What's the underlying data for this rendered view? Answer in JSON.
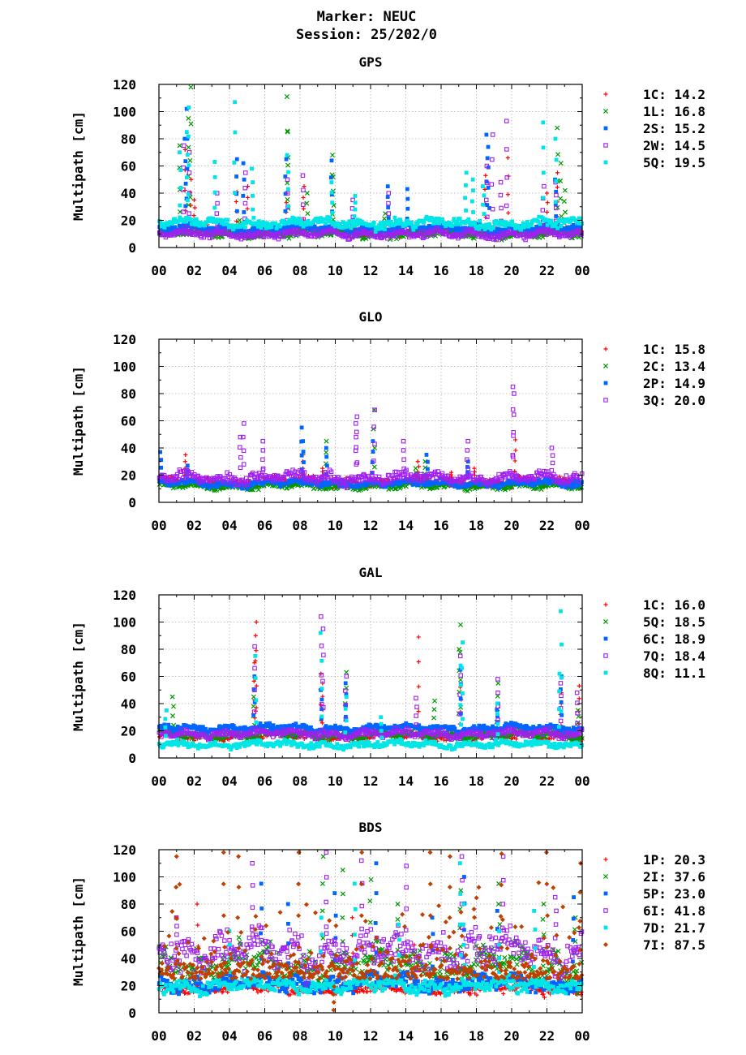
{
  "figure": {
    "title_line1": "Marker: NEUC",
    "title_line2": "Session: 25/202/0"
  },
  "chart_data": [
    {
      "type": "scatter",
      "title": "GPS",
      "ylabel": "Multipath [cm]",
      "xlim": [
        0,
        24
      ],
      "ylim": [
        0,
        120
      ],
      "xticks": [
        "00",
        "02",
        "04",
        "06",
        "08",
        "10",
        "12",
        "14",
        "16",
        "18",
        "20",
        "22",
        "00"
      ],
      "yticks": [
        0,
        20,
        40,
        60,
        80,
        100,
        120
      ],
      "grid": true,
      "legend_position": "right",
      "series": [
        {
          "name": "1C",
          "stat": "14.2",
          "color": "#ff0000",
          "marker": "plus",
          "base": 12,
          "spread": 6,
          "spikes": [
            [
              1.5,
              72
            ],
            [
              1.8,
              50
            ],
            [
              2.0,
              35
            ],
            [
              4.4,
              41
            ],
            [
              5.0,
              45
            ],
            [
              7.2,
              40
            ],
            [
              8.2,
              45
            ],
            [
              18.5,
              53
            ],
            [
              19.8,
              66
            ],
            [
              22.0,
              40
            ],
            [
              22.6,
              55
            ]
          ]
        },
        {
          "name": "1L",
          "stat": "16.8",
          "color": "#009900",
          "marker": "cross",
          "base": 10,
          "spread": 6,
          "spikes": [
            [
              1.8,
              118
            ],
            [
              1.7,
              95
            ],
            [
              1.2,
              75
            ],
            [
              4.6,
              20
            ],
            [
              7.3,
              111
            ],
            [
              7.3,
              85
            ],
            [
              8.4,
              40
            ],
            [
              9.8,
              68
            ],
            [
              9.9,
              52
            ],
            [
              12.8,
              25
            ],
            [
              22.6,
              88
            ],
            [
              22.8,
              62
            ],
            [
              23.0,
              42
            ]
          ]
        },
        {
          "name": "2S",
          "stat": "15.2",
          "color": "#0066ff",
          "marker": "square",
          "base": 14,
          "spread": 6,
          "spikes": [
            [
              1.6,
              102
            ],
            [
              1.5,
              80
            ],
            [
              4.4,
              65
            ],
            [
              4.8,
              62
            ],
            [
              7.2,
              65
            ],
            [
              9.8,
              64
            ],
            [
              13.0,
              45
            ],
            [
              14.1,
              43
            ],
            [
              18.6,
              83
            ],
            [
              18.7,
              74
            ],
            [
              22.5,
              50
            ]
          ]
        },
        {
          "name": "2W",
          "stat": "14.5",
          "color": "#a020f0",
          "marker": "square-open",
          "base": 10,
          "spread": 6,
          "spikes": [
            [
              1.4,
              75
            ],
            [
              1.7,
              70
            ],
            [
              3.3,
              40
            ],
            [
              4.9,
              55
            ],
            [
              7.3,
              50
            ],
            [
              8.2,
              53
            ],
            [
              11.0,
              35
            ],
            [
              13.0,
              40
            ],
            [
              18.6,
              60
            ],
            [
              18.9,
              83
            ],
            [
              19.7,
              93
            ],
            [
              19.4,
              48
            ],
            [
              21.8,
              45
            ],
            [
              22.5,
              48
            ]
          ]
        },
        {
          "name": "5Q",
          "stat": "19.5",
          "color": "#00e5e5",
          "marker": "square",
          "base": 18,
          "spread": 7,
          "spikes": [
            [
              1.2,
              70
            ],
            [
              1.7,
              103
            ],
            [
              1.6,
              85
            ],
            [
              3.2,
              63
            ],
            [
              4.3,
              107
            ],
            [
              5.3,
              58
            ],
            [
              7.3,
              68
            ],
            [
              9.8,
              48
            ],
            [
              11.1,
              38
            ],
            [
              17.4,
              55
            ],
            [
              17.8,
              50
            ],
            [
              18.4,
              45
            ],
            [
              21.8,
              92
            ],
            [
              22.5,
              80
            ]
          ]
        }
      ]
    },
    {
      "type": "scatter",
      "title": "GLO",
      "ylabel": "Multipath [cm]",
      "xlim": [
        0,
        24
      ],
      "ylim": [
        0,
        120
      ],
      "xticks": [
        "00",
        "02",
        "04",
        "06",
        "08",
        "10",
        "12",
        "14",
        "16",
        "18",
        "20",
        "22",
        "00"
      ],
      "yticks": [
        0,
        20,
        40,
        60,
        80,
        100,
        120
      ],
      "grid": true,
      "legend_position": "right",
      "series": [
        {
          "name": "1C",
          "stat": "15.8",
          "color": "#ff0000",
          "marker": "plus",
          "base": 15,
          "spread": 6,
          "spikes": [
            [
              1.5,
              35
            ],
            [
              8.2,
              35
            ],
            [
              9.3,
              25
            ],
            [
              14.7,
              30
            ],
            [
              16.6,
              22
            ],
            [
              17.9,
              25
            ],
            [
              20.2,
              46
            ]
          ]
        },
        {
          "name": "2C",
          "stat": "13.4",
          "color": "#009900",
          "marker": "cross",
          "base": 12,
          "spread": 5,
          "spikes": [
            [
              9.5,
              45
            ],
            [
              12.2,
              68
            ],
            [
              14.6,
              25
            ],
            [
              15.1,
              30
            ]
          ]
        },
        {
          "name": "2P",
          "stat": "14.9",
          "color": "#0066ff",
          "marker": "square",
          "base": 14,
          "spread": 5,
          "spikes": [
            [
              0.1,
              37
            ],
            [
              1.6,
              27
            ],
            [
              8.1,
              55
            ],
            [
              8.2,
              45
            ],
            [
              9.5,
              40
            ],
            [
              12.1,
              45
            ],
            [
              15.2,
              35
            ],
            [
              17.5,
              30
            ]
          ]
        },
        {
          "name": "3Q",
          "stat": "20.0",
          "color": "#a020f0",
          "marker": "square-open",
          "base": 18,
          "spread": 9,
          "spikes": [
            [
              4.8,
              58
            ],
            [
              4.6,
              48
            ],
            [
              5.9,
              45
            ],
            [
              11.2,
              63
            ],
            [
              11.2,
              58
            ],
            [
              12.2,
              68
            ],
            [
              13.9,
              45
            ],
            [
              17.5,
              45
            ],
            [
              20.1,
              85
            ],
            [
              20.1,
              80
            ],
            [
              22.3,
              40
            ]
          ]
        }
      ]
    },
    {
      "type": "scatter",
      "title": "GAL",
      "ylabel": "Multipath [cm]",
      "xlim": [
        0,
        24
      ],
      "ylim": [
        0,
        120
      ],
      "xticks": [
        "00",
        "02",
        "04",
        "06",
        "08",
        "10",
        "12",
        "14",
        "16",
        "18",
        "20",
        "22",
        "00"
      ],
      "yticks": [
        0,
        20,
        40,
        60,
        80,
        100,
        120
      ],
      "grid": true,
      "legend_position": "right",
      "series": [
        {
          "name": "1C",
          "stat": "16.0",
          "color": "#ff0000",
          "marker": "plus",
          "base": 16,
          "spread": 6,
          "spikes": [
            [
              5.5,
              100
            ],
            [
              5.5,
              90
            ],
            [
              5.4,
              70
            ],
            [
              9.2,
              62
            ],
            [
              9.3,
              55
            ],
            [
              14.7,
              89
            ],
            [
              17.1,
              52
            ],
            [
              22.8,
              48
            ],
            [
              23.8,
              53
            ]
          ]
        },
        {
          "name": "5Q",
          "stat": "18.5",
          "color": "#009900",
          "marker": "cross",
          "base": 17,
          "spread": 6,
          "spikes": [
            [
              0.8,
              45
            ],
            [
              5.4,
              45
            ],
            [
              10.6,
              63
            ],
            [
              15.6,
              42
            ],
            [
              17.1,
              98
            ],
            [
              17.0,
              80
            ],
            [
              19.2,
              55
            ],
            [
              23.8,
              35
            ]
          ]
        },
        {
          "name": "6C",
          "stat": "18.9",
          "color": "#0066ff",
          "marker": "square",
          "base": 22,
          "spread": 5,
          "spikes": [
            [
              5.4,
              60
            ],
            [
              9.2,
              50
            ],
            [
              10.6,
              55
            ],
            [
              17.1,
              65
            ],
            [
              19.2,
              40
            ],
            [
              22.8,
              60
            ]
          ]
        },
        {
          "name": "7Q",
          "stat": "18.4",
          "color": "#a020f0",
          "marker": "square-open",
          "base": 18,
          "spread": 6,
          "spikes": [
            [
              5.4,
              82
            ],
            [
              9.2,
              104
            ],
            [
              9.3,
              95
            ],
            [
              10.6,
              60
            ],
            [
              14.6,
              44
            ],
            [
              17.1,
              75
            ],
            [
              19.2,
              58
            ],
            [
              22.8,
              55
            ],
            [
              23.7,
              48
            ]
          ]
        },
        {
          "name": "8Q",
          "stat": "11.1",
          "color": "#00e5e5",
          "marker": "square",
          "base": 10,
          "spread": 5,
          "spikes": [
            [
              0.4,
              35
            ],
            [
              5.5,
              75
            ],
            [
              9.2,
              92
            ],
            [
              10.6,
              45
            ],
            [
              12.6,
              30
            ],
            [
              17.1,
              68
            ],
            [
              17.2,
              85
            ],
            [
              19.2,
              40
            ],
            [
              22.8,
              108
            ],
            [
              22.7,
              62
            ]
          ]
        }
      ]
    },
    {
      "type": "scatter",
      "title": "BDS",
      "ylabel": "Multipath [cm]",
      "xlim": [
        0,
        24
      ],
      "ylim": [
        0,
        120
      ],
      "xticks": [
        "00",
        "02",
        "04",
        "06",
        "08",
        "10",
        "12",
        "14",
        "16",
        "18",
        "20",
        "22",
        "00"
      ],
      "yticks": [
        0,
        20,
        40,
        60,
        80,
        100,
        120
      ],
      "grid": true,
      "legend_position": "right",
      "series": [
        {
          "name": "1P",
          "stat": "20.3",
          "color": "#ff0000",
          "marker": "plus",
          "base": 18,
          "spread": 8,
          "spikes": [
            [
              2.2,
              80
            ],
            [
              3.6,
              30
            ],
            [
              11.0,
              70
            ],
            [
              14.5,
              50
            ],
            [
              16.3,
              45
            ],
            [
              19.0,
              40
            ]
          ]
        },
        {
          "name": "2I",
          "stat": "37.6",
          "color": "#009900",
          "marker": "cross",
          "base": 35,
          "spread": 25,
          "spikes": [
            [
              9.3,
              115
            ],
            [
              10.4,
              105
            ],
            [
              12.0,
              98
            ],
            [
              13.5,
              80
            ],
            [
              17.1,
              90
            ],
            [
              19.3,
              95
            ],
            [
              21.8,
              80
            ],
            [
              23.6,
              70
            ]
          ]
        },
        {
          "name": "5P",
          "stat": "23.0",
          "color": "#0066ff",
          "marker": "square",
          "base": 22,
          "spread": 12,
          "spikes": [
            [
              5.8,
              95
            ],
            [
              7.3,
              80
            ],
            [
              10.0,
              88
            ],
            [
              12.3,
              110
            ],
            [
              15.5,
              70
            ],
            [
              17.3,
              100
            ],
            [
              19.2,
              75
            ],
            [
              23.5,
              85
            ]
          ]
        },
        {
          "name": "6I",
          "stat": "41.8",
          "color": "#a020f0",
          "marker": "square-open",
          "base": 45,
          "spread": 30,
          "spikes": [
            [
              1.0,
              70
            ],
            [
              5.3,
              110
            ],
            [
              9.5,
              118
            ],
            [
              11.5,
              112
            ],
            [
              14.0,
              108
            ],
            [
              17.2,
              115
            ],
            [
              19.5,
              115
            ],
            [
              22.5,
              85
            ]
          ]
        },
        {
          "name": "7D",
          "stat": "21.7",
          "color": "#00e5e5",
          "marker": "square",
          "base": 20,
          "spread": 10,
          "spikes": [
            [
              4.0,
              60
            ],
            [
              9.2,
              70
            ],
            [
              11.1,
              95
            ],
            [
              13.6,
              65
            ],
            [
              17.1,
              110
            ],
            [
              17.3,
              80
            ],
            [
              19.3,
              60
            ],
            [
              21.3,
              75
            ]
          ]
        },
        {
          "name": "7I",
          "stat": "87.5",
          "color": "#c04000",
          "marker": "diamond",
          "base": 25,
          "spread": 90,
          "spikes": [
            [
              1.0,
              115
            ],
            [
              3.7,
              118
            ],
            [
              4.5,
              115
            ],
            [
              7.9,
              118
            ],
            [
              9.9,
              2
            ],
            [
              11.5,
              118
            ],
            [
              15.4,
              118
            ],
            [
              16.5,
              115
            ],
            [
              19.4,
              117
            ],
            [
              22.0,
              118
            ],
            [
              23.9,
              110
            ]
          ]
        }
      ]
    }
  ]
}
